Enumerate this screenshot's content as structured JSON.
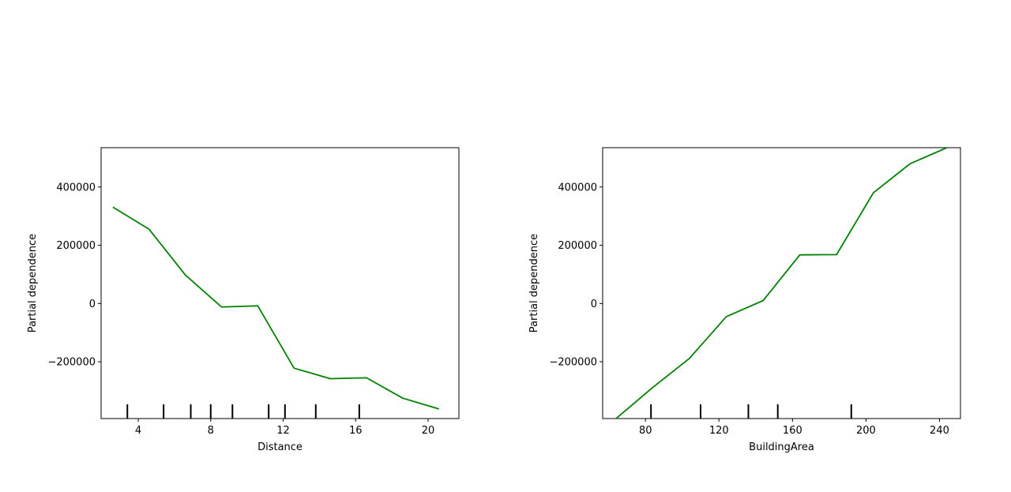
{
  "chart_data": [
    {
      "type": "line",
      "title": "",
      "xlabel": "Distance",
      "ylabel": "Partial dependence",
      "xlim": [
        1.95,
        21.7
      ],
      "ylim": [
        -395000,
        535000
      ],
      "x_ticks": [
        4,
        8,
        12,
        16,
        20
      ],
      "x_tick_labels": [
        "4",
        "8",
        "12",
        "16",
        "20"
      ],
      "y_ticks": [
        -200000,
        0,
        200000,
        400000
      ],
      "y_tick_labels": [
        "−200000",
        "0",
        "200000",
        "400000"
      ],
      "grid": false,
      "legend": "none",
      "series": [
        {
          "color": "#008000",
          "x": [
            2.6,
            4.6,
            6.6,
            8.6,
            10.6,
            12.6,
            14.6,
            16.6,
            18.6,
            20.6
          ],
          "y": [
            331000,
            255000,
            98000,
            -12000,
            -8000,
            -222000,
            -258000,
            -255000,
            -325000,
            -362000
          ]
        }
      ],
      "deciles": [
        3.4,
        5.4,
        6.9,
        8.0,
        9.2,
        11.2,
        12.1,
        13.8,
        16.2
      ]
    },
    {
      "type": "line",
      "title": "",
      "xlabel": "BuildingArea",
      "ylabel": "Partial dependence",
      "xlim": [
        56.7,
        251.4
      ],
      "ylim": [
        -395000,
        535000
      ],
      "x_ticks": [
        80,
        120,
        160,
        200,
        240
      ],
      "x_tick_labels": [
        "80",
        "120",
        "160",
        "200",
        "240"
      ],
      "y_ticks": [
        -200000,
        0,
        200000,
        400000
      ],
      "y_tick_labels": [
        "−200000",
        "0",
        "200000",
        "400000"
      ],
      "grid": false,
      "legend": "none",
      "series": [
        {
          "color": "#008000",
          "x": [
            64,
            84,
            104,
            124,
            144,
            164,
            184,
            204,
            224,
            244
          ],
          "y": [
            -395000,
            -288000,
            -188000,
            -45000,
            10000,
            167000,
            168000,
            380000,
            480000,
            535000
          ]
        }
      ],
      "deciles": [
        83,
        110,
        136,
        152,
        192
      ]
    }
  ]
}
